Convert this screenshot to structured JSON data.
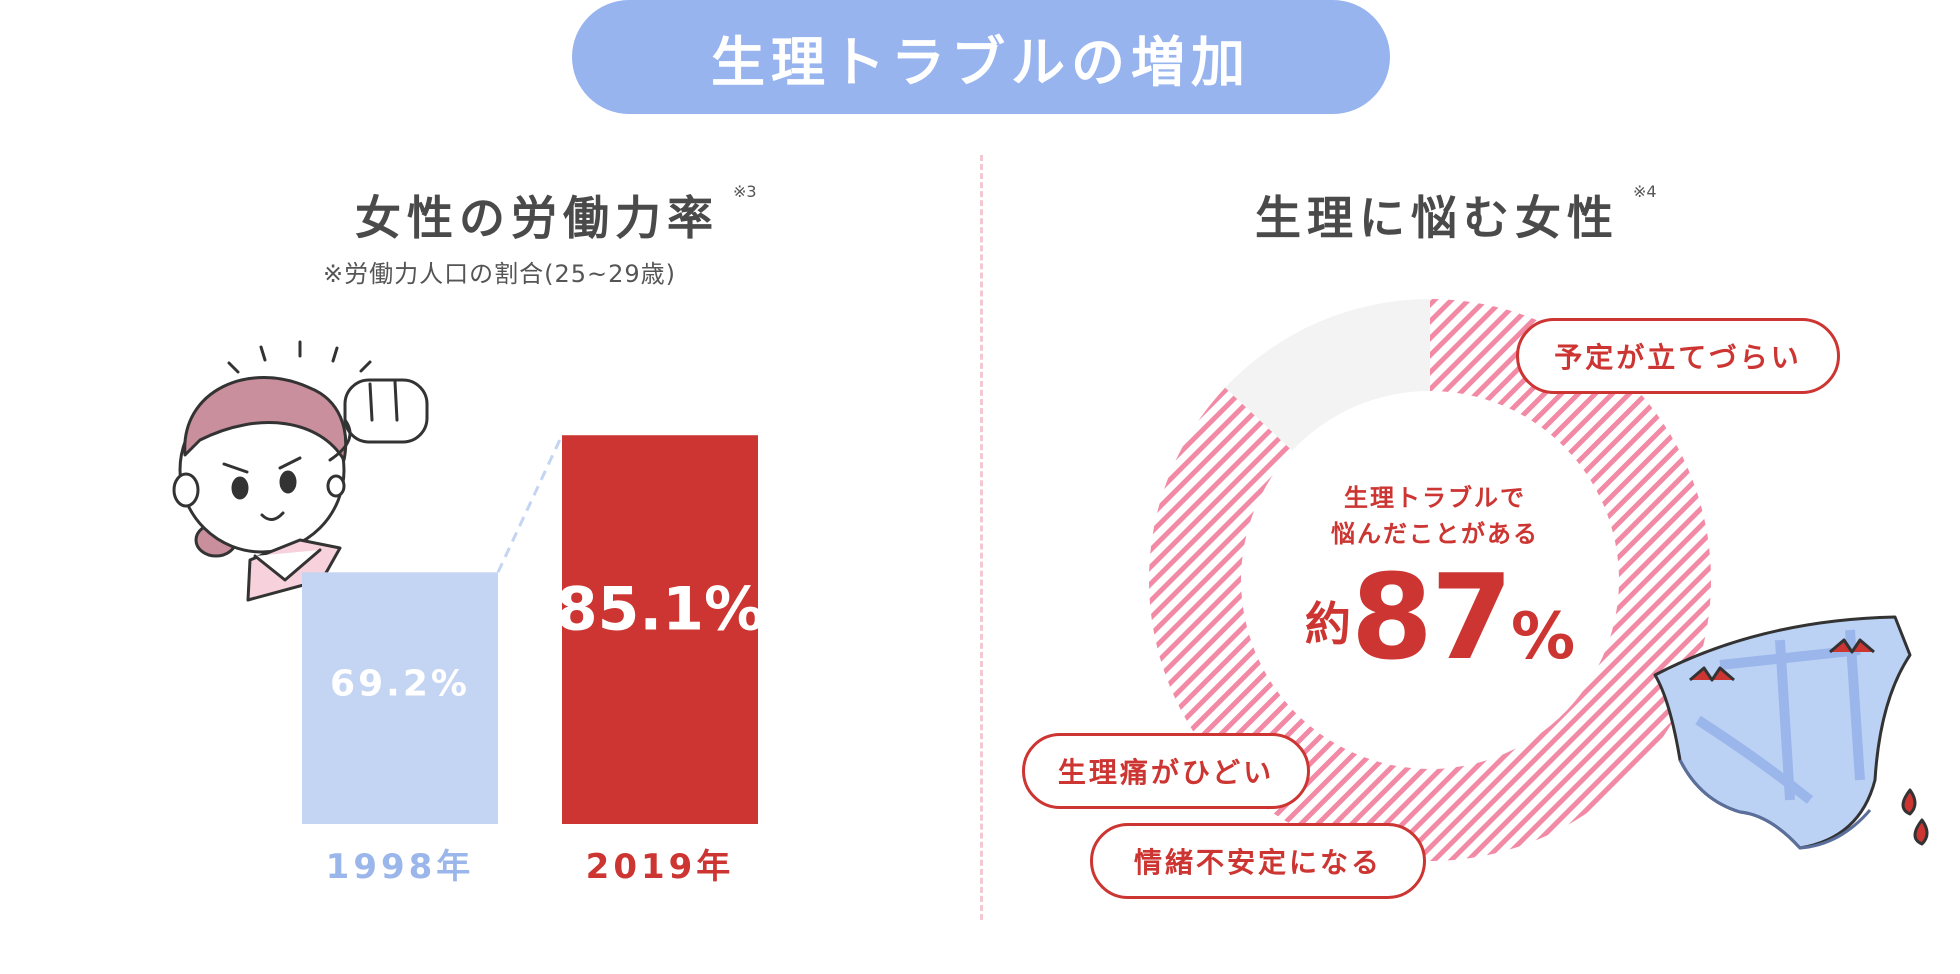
{
  "header": {
    "title": "生理トラブルの増加"
  },
  "left": {
    "title": "女性の労働力率",
    "note": "※3",
    "subtitle": "※労働力人口の割合(25~29歳)"
  },
  "right": {
    "title": "生理に悩む女性",
    "note": "※4",
    "center_line1": "生理トラブルで",
    "center_line2": "悩んだことがある",
    "prefix": "約",
    "value": "87",
    "unit": "%",
    "bubbles": [
      "予定が立てづらい",
      "生理痛がひどい",
      "情緒不安定になる"
    ]
  },
  "chart_data": [
    {
      "type": "bar",
      "categories": [
        "1998年",
        "2019年"
      ],
      "values": [
        69.2,
        85.1
      ],
      "labels": [
        "69.2%",
        "85.1%"
      ],
      "colors": [
        "#c4d4f3",
        "#cc3531"
      ],
      "label_colors": [
        "#9bb6ea",
        "#cc3531"
      ],
      "ylim": [
        0,
        100
      ]
    },
    {
      "type": "pie",
      "donut": true,
      "slices": [
        {
          "label": "生理トラブルで悩んだことがある",
          "value": 87,
          "color": "#f28aa6"
        },
        {
          "label": "",
          "value": 13,
          "color": "#f3f3f3"
        }
      ]
    }
  ]
}
